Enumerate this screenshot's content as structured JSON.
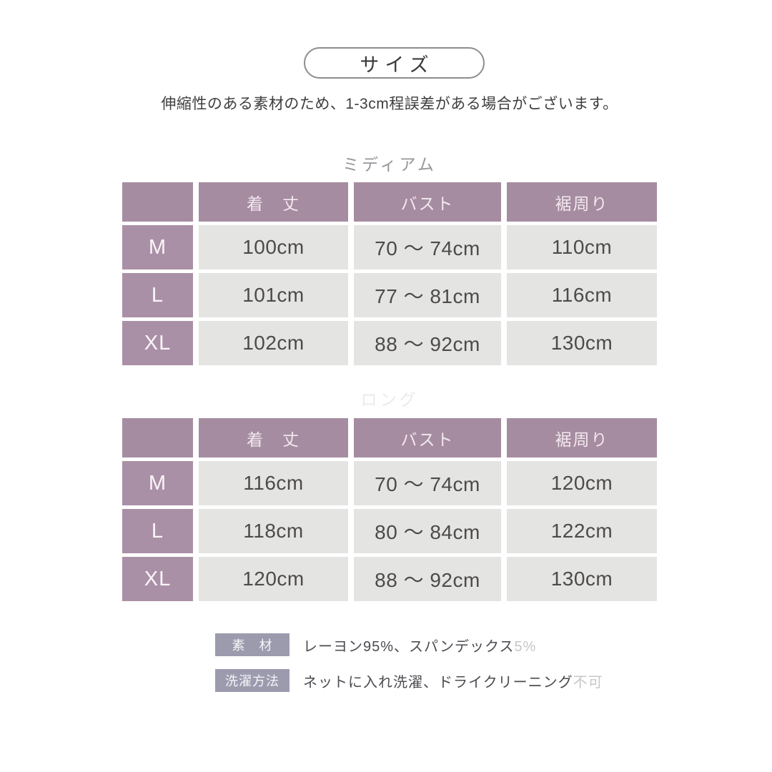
{
  "page": {
    "title": "サイズ",
    "subtitle": "伸縮性のある素材のため、1-3cm程誤差がある場合がございます。"
  },
  "tables": [
    {
      "section_label": "ミディアム",
      "columns": [
        "着　丈",
        "バスト",
        "裾周り"
      ],
      "rows": [
        {
          "size": "M",
          "values": [
            "100cm",
            "70 ～ 74cm",
            "110cm"
          ]
        },
        {
          "size": "L",
          "values": [
            "101cm",
            "77 ～ 81cm",
            "116cm"
          ]
        },
        {
          "size": "XL",
          "values": [
            "102cm",
            "88 ～ 92cm",
            "130cm"
          ]
        }
      ]
    },
    {
      "section_label": "ロング",
      "columns": [
        "着　丈",
        "バスト",
        "裾周り"
      ],
      "rows": [
        {
          "size": "M",
          "values": [
            "116cm",
            "70 ～ 74cm",
            "120cm"
          ]
        },
        {
          "size": "L",
          "values": [
            "118cm",
            "80 ～ 84cm",
            "122cm"
          ]
        },
        {
          "size": "XL",
          "values": [
            "120cm",
            "88 ～ 92cm",
            "130cm"
          ]
        }
      ]
    }
  ],
  "details": [
    {
      "label": "素　材",
      "text": "レーヨン95%、スパンデックス",
      "faded": "5%"
    },
    {
      "label": "洗濯方法",
      "text": "ネットに入れ洗濯、ドライクリーニング",
      "faded": "不可"
    }
  ],
  "colors": {
    "header_bg": "#a68ca1",
    "size_cell_bg": "#aa90a6",
    "data_cell_bg": "#e4e4e3",
    "badge_bg": "#9c9bae",
    "body_text": "#3e3e40",
    "data_text": "#4d4b4a",
    "faded_text": "#c7c7cb",
    "faint_section_label": "#eceaea"
  }
}
